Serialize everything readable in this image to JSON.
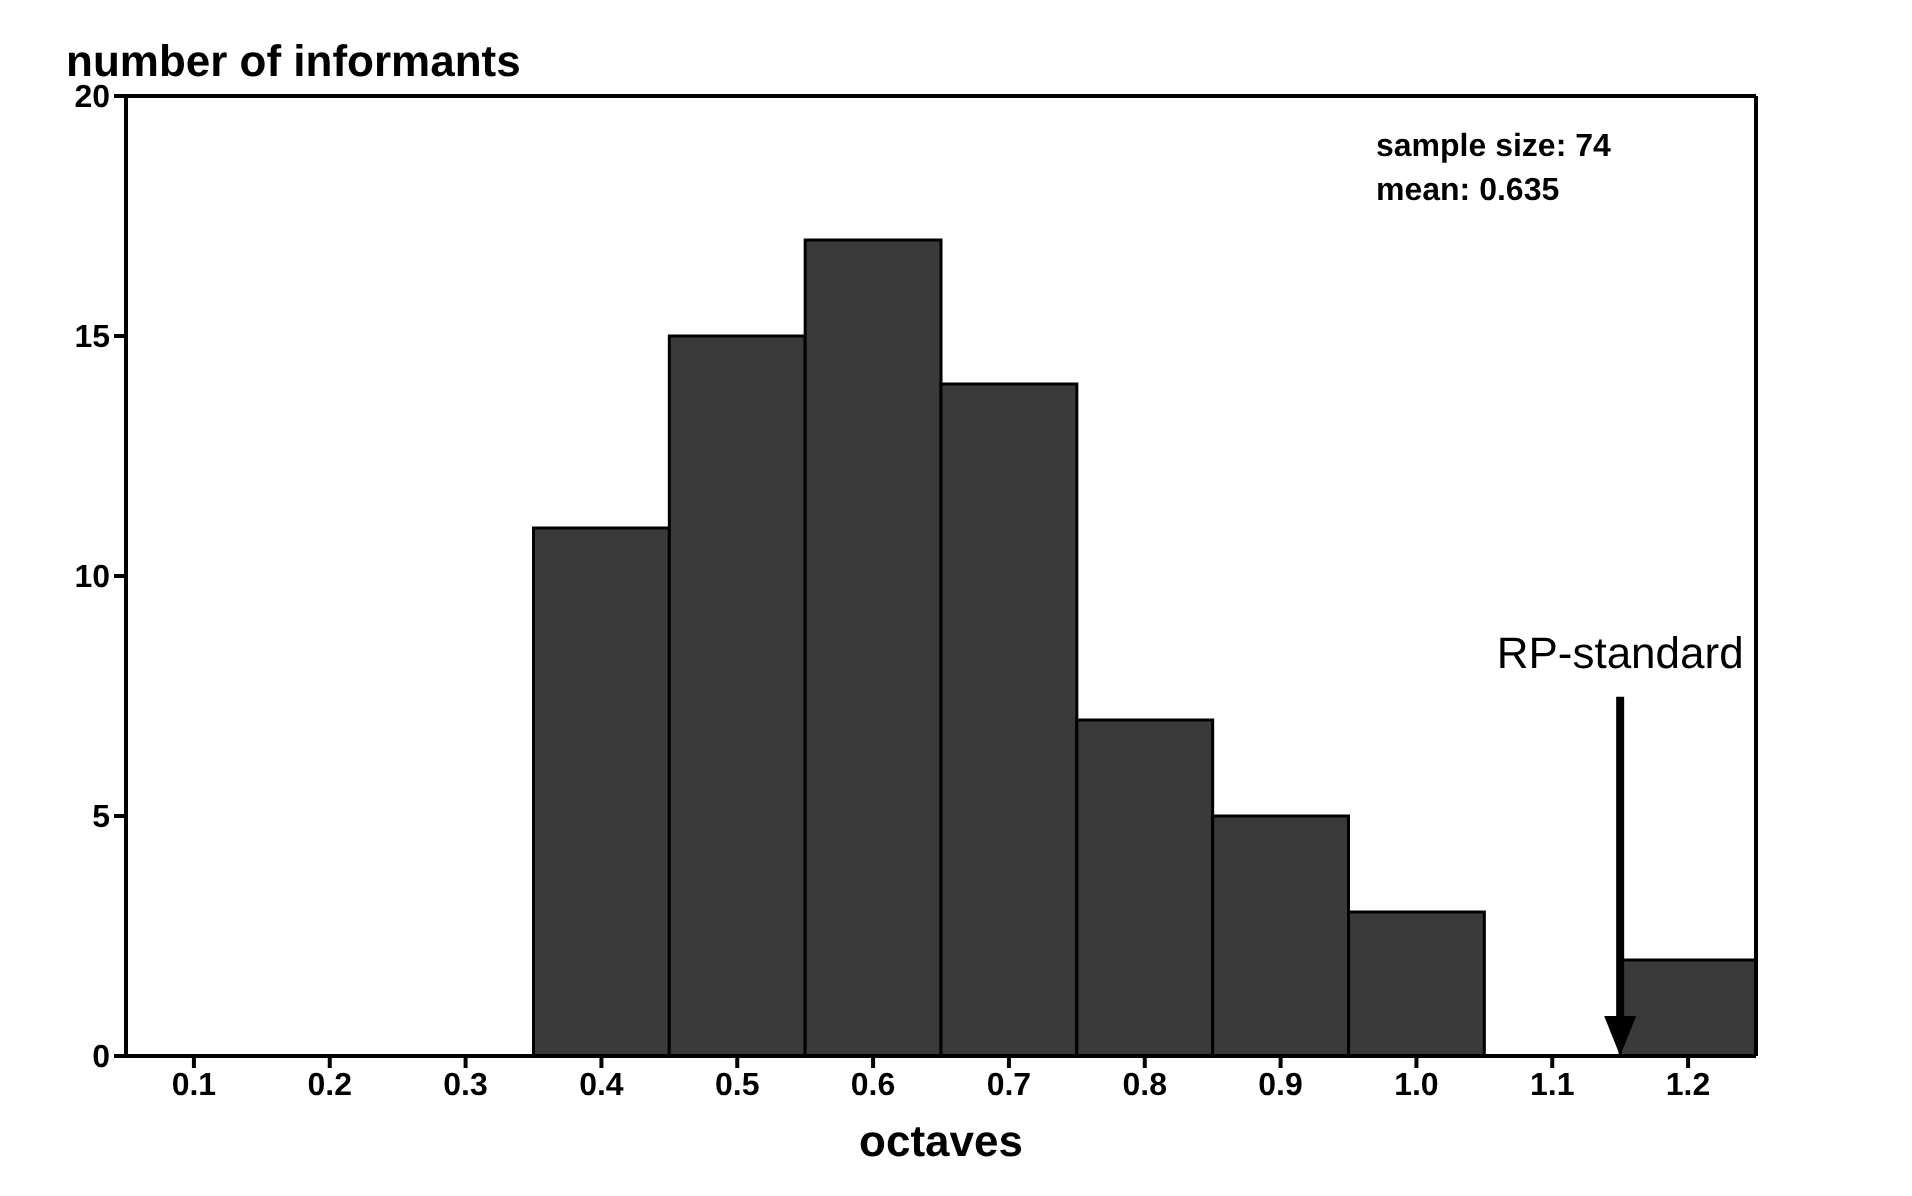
{
  "chart_data": {
    "type": "histogram",
    "ylabel": "number of informants",
    "xlabel": "octaves",
    "bins": [
      0.35,
      0.45,
      0.55,
      0.65,
      0.75,
      0.85,
      0.95,
      1.05,
      1.15,
      1.25
    ],
    "values": [
      11,
      15,
      17,
      14,
      7,
      5,
      3,
      0,
      2
    ],
    "color": "#3a3a3a",
    "xlim": [
      0.05,
      1.25
    ],
    "xticks": [
      0.1,
      0.2,
      0.3,
      0.4,
      0.5,
      0.6,
      0.7,
      0.8,
      0.9,
      {
        "value": 1,
        "label": "1.0"
      },
      1.1,
      1.2
    ],
    "ylim": [
      0,
      20
    ],
    "yticks": [
      0,
      5,
      10,
      15,
      20
    ],
    "grid": false,
    "legend": false,
    "annotations": [
      "sample size: 74",
      "mean: 0.635"
    ],
    "ref_lines": [
      {
        "axis": "x",
        "value": 1.15,
        "label": "RP-standard",
        "color": "#000000"
      }
    ]
  }
}
